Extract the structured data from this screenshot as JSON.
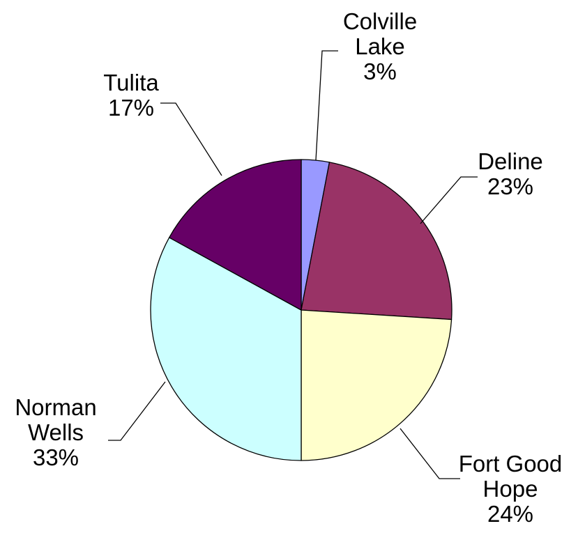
{
  "chart_data": {
    "type": "pie",
    "title": "",
    "slices": [
      {
        "lines": [
          "Colville",
          "Lake"
        ],
        "pct_label": "3%",
        "value": 3,
        "color": "#9999ff"
      },
      {
        "lines": [
          "Deline"
        ],
        "pct_label": "23%",
        "value": 23,
        "color": "#993366"
      },
      {
        "lines": [
          "Fort Good",
          "Hope"
        ],
        "pct_label": "24%",
        "value": 24,
        "color": "#ffffcc"
      },
      {
        "lines": [
          "Norman",
          "Wells"
        ],
        "pct_label": "33%",
        "value": 33,
        "color": "#ccffff"
      },
      {
        "lines": [
          "Tulita"
        ],
        "pct_label": "17%",
        "value": 17,
        "color": "#660066"
      }
    ],
    "start_angle": "12 o'clock",
    "direction": "clockwise",
    "legend": "none"
  }
}
